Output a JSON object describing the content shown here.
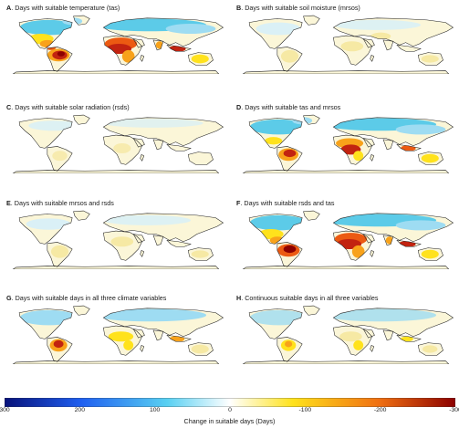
{
  "panels": [
    {
      "letter": "A",
      "title": "Days with suitable temperature (tas)",
      "pattern": "A"
    },
    {
      "letter": "B",
      "title": "Days with suitable soil moisture (mrsos)",
      "pattern": "B"
    },
    {
      "letter": "C",
      "title": "Days with suitable solar radiation (rsds)",
      "pattern": "C"
    },
    {
      "letter": "D",
      "title": "Days with suitable tas and mrsos",
      "pattern": "D"
    },
    {
      "letter": "E",
      "title": "Days with suitable mrsos and rsds",
      "pattern": "E"
    },
    {
      "letter": "F",
      "title": "Days with suitable rsds and tas",
      "pattern": "F"
    },
    {
      "letter": "G",
      "title": "Days with suitable days in all three climate variables",
      "pattern": "G"
    },
    {
      "letter": "H",
      "title": "Continuous suitable days in all three variables",
      "pattern": "H"
    }
  ],
  "colorbar": {
    "min": 300,
    "max": -300,
    "ticks": [
      "300",
      "200",
      "100",
      "0",
      "-100",
      "-200",
      "-300"
    ],
    "label": "Change in suitable days (Days)",
    "colors": [
      "#08127a",
      "#1f5ff0",
      "#58d0f2",
      "#ffffff",
      "#ffe21c",
      "#f07012",
      "#8c0000"
    ]
  }
}
